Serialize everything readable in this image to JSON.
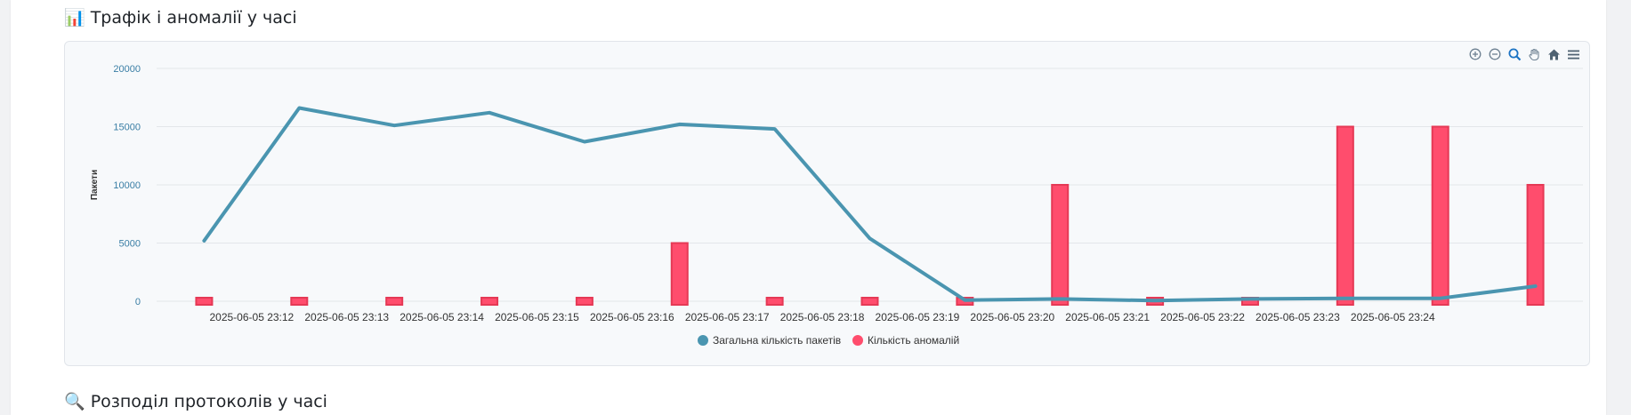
{
  "sections": {
    "traffic_title": "📊 Трафік і аномалії у часі",
    "protocols_title": "🔍 Розподіл протоколів у часі"
  },
  "toolbar": {
    "icons": [
      "zoom-in-icon",
      "zoom-out-icon",
      "zoom-selection-icon",
      "pan-hand-icon",
      "home-reset-icon",
      "menu-icon"
    ]
  },
  "colors": {
    "packets": "#4a95b0",
    "anomalies": "#ff4d6d",
    "axis_label": "#3a7ea5"
  },
  "chart_data": {
    "type": "line",
    "title": "",
    "xlabel": "",
    "ylabel": "Пакети",
    "ylim": [
      0,
      20000
    ],
    "yticks": [
      0,
      5000,
      10000,
      15000,
      20000
    ],
    "x_tick_labels": [
      "2025-06-05 23:12",
      "2025-06-05 23:13",
      "2025-06-05 23:14",
      "2025-06-05 23:15",
      "2025-06-05 23:16",
      "2025-06-05 23:17",
      "2025-06-05 23:18",
      "2025-06-05 23:19",
      "2025-06-05 23:20",
      "2025-06-05 23:21",
      "2025-06-05 23:22",
      "2025-06-05 23:23",
      "2025-06-05 23:24"
    ],
    "grid": true,
    "legend_position": "bottom-center",
    "series": [
      {
        "name": "Загальна кількість пакетів",
        "type": "line",
        "values": [
          5200,
          16600,
          15100,
          16200,
          13700,
          15200,
          14800,
          5400,
          100,
          200,
          50,
          200,
          250,
          250,
          1300
        ]
      },
      {
        "name": "Кількість аномалій",
        "type": "bar",
        "values": [
          0,
          0,
          0,
          0,
          0,
          5000,
          0,
          0,
          0,
          10000,
          0,
          0,
          15000,
          15000,
          10000
        ]
      }
    ]
  }
}
